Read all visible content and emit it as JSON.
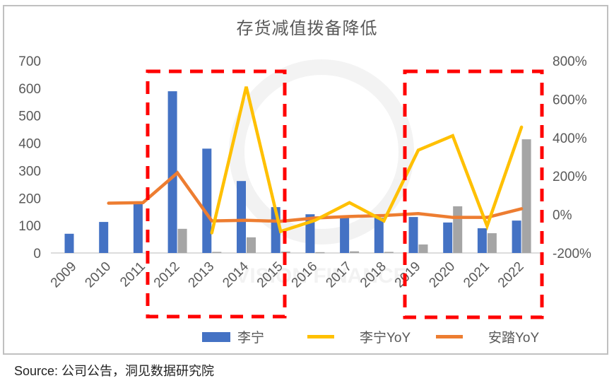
{
  "title": "存货减值拨备降低",
  "source": "Source:  公司公告，洞见数据研究院",
  "legend": [
    {
      "label": "李宁",
      "type": "bar",
      "color": "#4472C4"
    },
    {
      "label": "李宁YoY",
      "type": "line",
      "color": "#FFC000"
    },
    {
      "label": "安踏YoY",
      "type": "line",
      "color": "#ED7D31"
    }
  ],
  "watermark": "VISION FINANCE",
  "chart_data": {
    "type": "bar+line",
    "title": "存货减值拨备降低",
    "categories": [
      "2009",
      "2010",
      "2011",
      "2012",
      "2013",
      "2014",
      "2015",
      "2016",
      "2017",
      "2018",
      "2019",
      "2020",
      "2021",
      "2022"
    ],
    "series": [
      {
        "name": "李宁",
        "type": "bar",
        "axis": "left",
        "color": "#4472C4",
        "values": [
          70,
          113,
          178,
          589,
          380,
          262,
          167,
          141,
          133,
          128,
          131,
          111,
          90,
          118
        ]
      },
      {
        "name": "(unlabeled grey)",
        "type": "bar",
        "axis": "left",
        "color": "#A5A5A5",
        "values": [
          null,
          null,
          null,
          88,
          4,
          57,
          5,
          3,
          6,
          4,
          31,
          170,
          72,
          414
        ]
      },
      {
        "name": "李宁YoY",
        "type": "line",
        "axis": "right",
        "color": "#FFC000",
        "unit": "%",
        "values": [
          null,
          null,
          null,
          null,
          -95,
          665,
          -88,
          -30,
          62,
          -33,
          335,
          410,
          -60,
          455
        ]
      },
      {
        "name": "安踏YoY",
        "type": "line",
        "axis": "right",
        "color": "#ED7D31",
        "unit": "%",
        "values": [
          null,
          59,
          62,
          217,
          -33,
          -30,
          -35,
          -18,
          -10,
          -5,
          5,
          -15,
          -15,
          30
        ]
      }
    ],
    "left_axis": {
      "ticks": [
        0,
        100,
        200,
        300,
        400,
        500,
        600,
        700
      ],
      "ylim": [
        0,
        700
      ]
    },
    "right_axis": {
      "ticks": [
        "-200%",
        "0%",
        "200%",
        "400%",
        "600%",
        "800%"
      ],
      "ylim": [
        -200,
        800
      ]
    },
    "annotations": [
      {
        "type": "dashed-box",
        "color": "#FF0000",
        "covers": [
          "2012",
          "2015"
        ]
      },
      {
        "type": "dashed-box",
        "color": "#FF0000",
        "covers": [
          "2019",
          "2022"
        ]
      }
    ],
    "grid": false,
    "legend_position": "bottom",
    "xlabel": "",
    "ylabel": ""
  }
}
